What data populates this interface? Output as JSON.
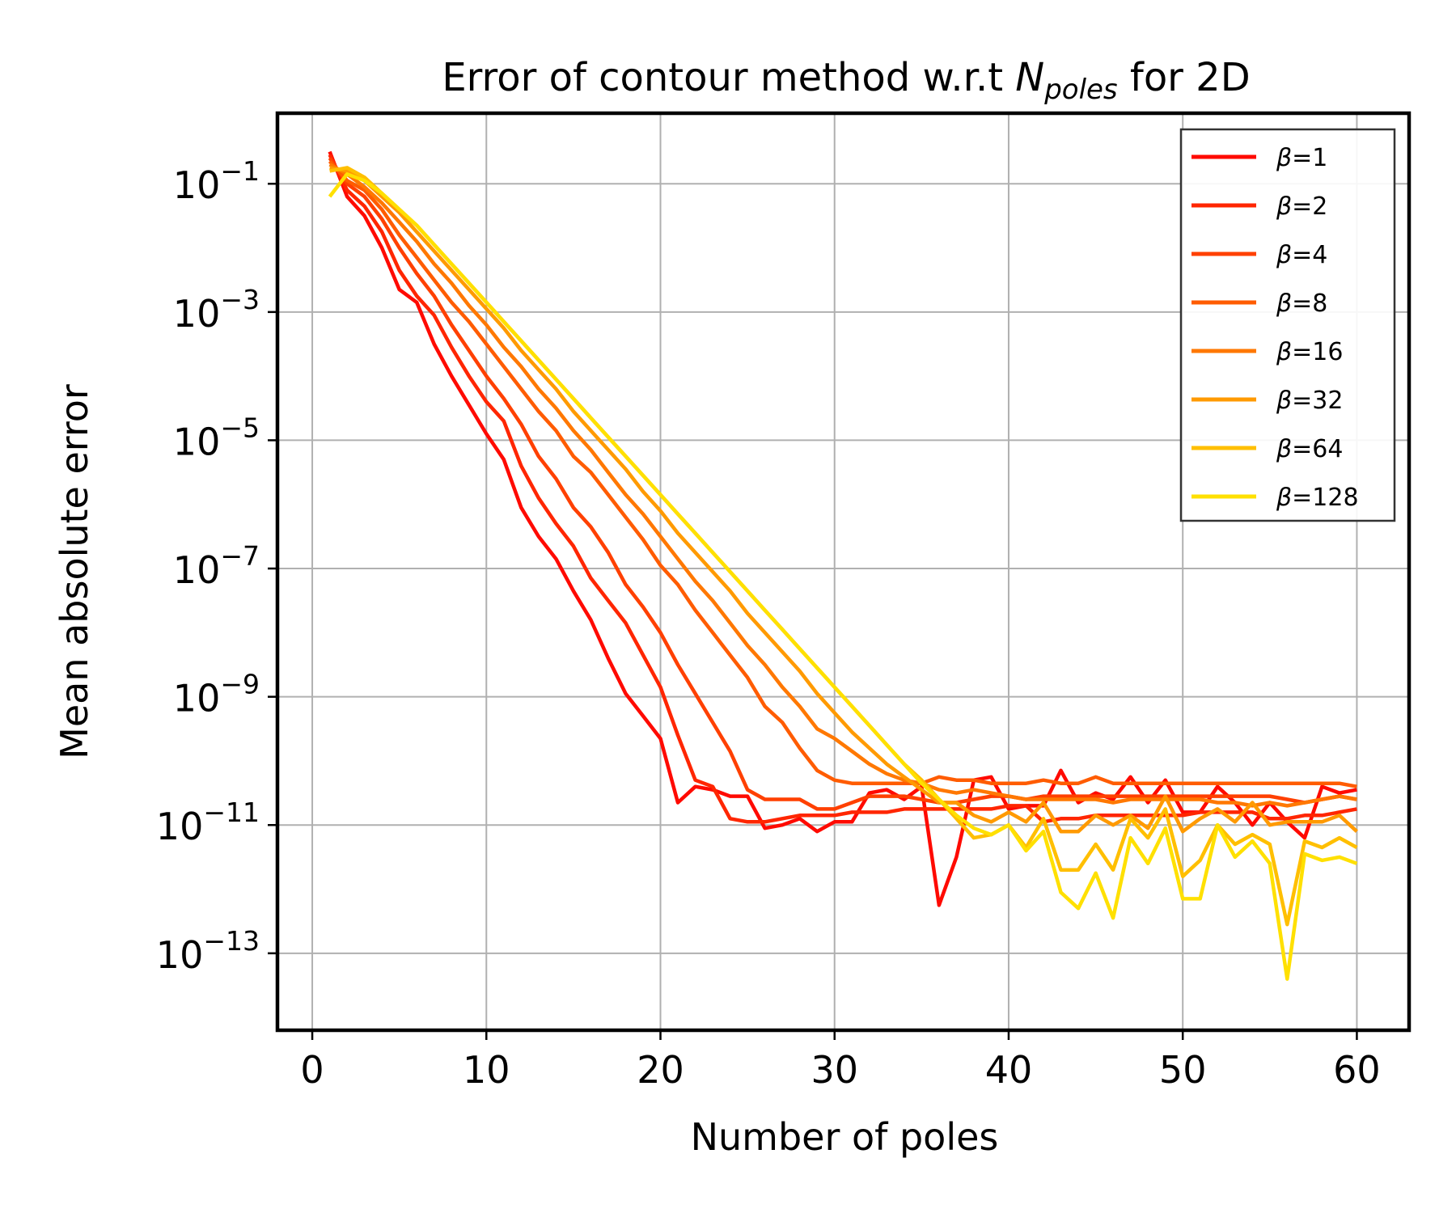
{
  "chart_data": {
    "type": "line",
    "title": "Error of contour method w.r.t N_poles for 2D",
    "title_parts": {
      "prefix": "Error of contour method w.r.t ",
      "var": "N",
      "var_sub": "poles",
      "suffix": " for 2D"
    },
    "xlabel": "Number of poles",
    "ylabel": "Mean absolute error",
    "y_scale": "log",
    "xlim": [
      -2,
      63
    ],
    "ylim_exp": [
      -14.2,
      0.1
    ],
    "x_ticks": [
      0,
      10,
      20,
      30,
      40,
      50,
      60
    ],
    "y_tick_exponents": [
      -1,
      -3,
      -5,
      -7,
      -9,
      -11,
      -13
    ],
    "y_tick_base": "10",
    "grid": true,
    "legend_position": "top-right",
    "legend_symbol": "β",
    "x": [
      1,
      2,
      3,
      4,
      5,
      6,
      7,
      8,
      9,
      10,
      11,
      12,
      13,
      14,
      15,
      16,
      17,
      18,
      19,
      20,
      21,
      22,
      23,
      24,
      25,
      26,
      27,
      28,
      29,
      30,
      31,
      32,
      33,
      34,
      35,
      36,
      37,
      38,
      39,
      40,
      41,
      42,
      43,
      44,
      45,
      46,
      47,
      48,
      49,
      50,
      51,
      52,
      53,
      54,
      55,
      56,
      57,
      58,
      59,
      60
    ],
    "series_log10": [
      {
        "name": "β=1",
        "color": "#ff0a00",
        "values": [
          -0.5,
          -1.2,
          -1.5,
          -2.0,
          -2.65,
          -2.85,
          -3.5,
          -4.0,
          -4.45,
          -4.9,
          -5.3,
          -6.05,
          -6.5,
          -6.85,
          -7.35,
          -7.8,
          -8.4,
          -8.95,
          -9.3,
          -9.65,
          -10.65,
          -10.4,
          -10.45,
          -10.55,
          -10.55,
          -11.05,
          -11.0,
          -10.9,
          -11.1,
          -10.95,
          -10.95,
          -10.5,
          -10.45,
          -10.6,
          -10.4,
          -12.25,
          -11.5,
          -10.3,
          -10.25,
          -10.75,
          -10.7,
          -10.7,
          -10.15,
          -10.65,
          -10.5,
          -10.6,
          -10.25,
          -10.65,
          -10.3,
          -10.8,
          -10.8,
          -10.4,
          -10.65,
          -11.0,
          -10.65,
          -10.95,
          -11.2,
          -10.4,
          -10.5,
          -10.45
        ]
      },
      {
        "name": "β=2",
        "color": "#ff2600",
        "values": [
          -0.55,
          -1.1,
          -1.35,
          -1.75,
          -2.35,
          -2.75,
          -3.05,
          -3.55,
          -4.0,
          -4.4,
          -4.7,
          -5.4,
          -5.9,
          -6.3,
          -6.65,
          -7.15,
          -7.5,
          -7.85,
          -8.35,
          -8.85,
          -9.6,
          -10.3,
          -10.4,
          -10.9,
          -10.95,
          -10.95,
          -10.9,
          -10.85,
          -10.85,
          -10.85,
          -10.8,
          -10.8,
          -10.8,
          -10.75,
          -10.75,
          -10.75,
          -10.75,
          -10.75,
          -10.75,
          -10.7,
          -10.7,
          -10.95,
          -10.9,
          -10.9,
          -10.85,
          -10.85,
          -10.85,
          -10.85,
          -10.85,
          -10.85,
          -10.8,
          -10.8,
          -10.8,
          -10.8,
          -10.9,
          -10.9,
          -10.85,
          -10.85,
          -10.8,
          -10.75
        ]
      },
      {
        "name": "β=4",
        "color": "#ff4000",
        "values": [
          -0.6,
          -1.0,
          -1.2,
          -1.55,
          -2.0,
          -2.4,
          -2.75,
          -3.2,
          -3.6,
          -4.0,
          -4.35,
          -4.75,
          -5.25,
          -5.6,
          -6.05,
          -6.35,
          -6.75,
          -7.25,
          -7.6,
          -8.0,
          -8.5,
          -8.95,
          -9.4,
          -9.85,
          -10.45,
          -10.6,
          -10.6,
          -10.6,
          -10.75,
          -10.75,
          -10.65,
          -10.55,
          -10.55,
          -10.55,
          -10.6,
          -10.65,
          -10.65,
          -10.6,
          -10.55,
          -10.55,
          -10.6,
          -10.55,
          -10.55,
          -10.55,
          -10.55,
          -10.55,
          -10.55,
          -10.55,
          -10.55,
          -10.55,
          -10.55,
          -10.55,
          -10.55,
          -10.55,
          -10.55,
          -10.6,
          -10.65,
          -10.6,
          -10.55,
          -10.6
        ]
      },
      {
        "name": "β=8",
        "color": "#ff5c00",
        "values": [
          -0.65,
          -0.95,
          -1.1,
          -1.4,
          -1.8,
          -2.15,
          -2.5,
          -2.85,
          -3.15,
          -3.5,
          -3.85,
          -4.2,
          -4.55,
          -4.85,
          -5.25,
          -5.5,
          -5.85,
          -6.2,
          -6.55,
          -6.95,
          -7.25,
          -7.65,
          -8.0,
          -8.35,
          -8.7,
          -9.15,
          -9.4,
          -9.8,
          -10.15,
          -10.3,
          -10.35,
          -10.35,
          -10.35,
          -10.35,
          -10.35,
          -10.25,
          -10.3,
          -10.3,
          -10.35,
          -10.35,
          -10.35,
          -10.3,
          -10.35,
          -10.35,
          -10.25,
          -10.35,
          -10.35,
          -10.35,
          -10.35,
          -10.35,
          -10.35,
          -10.35,
          -10.35,
          -10.35,
          -10.35,
          -10.35,
          -10.35,
          -10.35,
          -10.35,
          -10.4
        ]
      },
      {
        "name": "β=16",
        "color": "#ff7800",
        "values": [
          -0.7,
          -0.85,
          -1.05,
          -1.3,
          -1.6,
          -1.9,
          -2.25,
          -2.55,
          -2.9,
          -3.2,
          -3.55,
          -3.85,
          -4.2,
          -4.5,
          -4.85,
          -5.15,
          -5.5,
          -5.85,
          -6.15,
          -6.5,
          -6.85,
          -7.2,
          -7.5,
          -7.85,
          -8.2,
          -8.5,
          -8.85,
          -9.15,
          -9.5,
          -9.65,
          -9.85,
          -10.05,
          -10.2,
          -10.3,
          -10.35,
          -10.45,
          -10.5,
          -10.45,
          -10.5,
          -10.55,
          -10.6,
          -10.6,
          -10.6,
          -10.6,
          -10.6,
          -10.65,
          -10.6,
          -10.6,
          -10.6,
          -10.6,
          -10.6,
          -10.65,
          -10.65,
          -10.7,
          -10.65,
          -10.7,
          -10.65,
          -10.6,
          -10.55,
          -10.6
        ]
      },
      {
        "name": "β=32",
        "color": "#ff9a00",
        "values": [
          -0.75,
          -0.8,
          -0.95,
          -1.2,
          -1.45,
          -1.75,
          -2.05,
          -2.35,
          -2.65,
          -2.95,
          -3.25,
          -3.6,
          -3.9,
          -4.2,
          -4.55,
          -4.85,
          -5.15,
          -5.45,
          -5.8,
          -6.1,
          -6.45,
          -6.75,
          -7.05,
          -7.35,
          -7.7,
          -8.0,
          -8.3,
          -8.6,
          -8.95,
          -9.25,
          -9.55,
          -9.8,
          -10.05,
          -10.25,
          -10.45,
          -10.65,
          -10.65,
          -10.85,
          -10.95,
          -10.8,
          -10.95,
          -10.65,
          -11.1,
          -11.1,
          -10.85,
          -11.0,
          -10.85,
          -11.05,
          -10.55,
          -11.1,
          -10.9,
          -10.75,
          -10.95,
          -10.65,
          -11.0,
          -10.95,
          -10.95,
          -10.95,
          -10.85,
          -11.1
        ]
      },
      {
        "name": "β=64",
        "color": "#ffbf00",
        "values": [
          -0.8,
          -0.75,
          -0.9,
          -1.15,
          -1.4,
          -1.65,
          -1.95,
          -2.25,
          -2.55,
          -2.85,
          -3.15,
          -3.45,
          -3.75,
          -4.05,
          -4.35,
          -4.65,
          -4.95,
          -5.25,
          -5.55,
          -5.85,
          -6.15,
          -6.45,
          -6.75,
          -7.05,
          -7.35,
          -7.65,
          -7.95,
          -8.25,
          -8.55,
          -8.85,
          -9.15,
          -9.45,
          -9.75,
          -10.05,
          -10.3,
          -10.6,
          -10.9,
          -11.2,
          -11.15,
          -11.0,
          -11.35,
          -10.9,
          -11.7,
          -11.7,
          -11.3,
          -11.7,
          -10.9,
          -11.2,
          -10.75,
          -11.8,
          -11.55,
          -11.0,
          -11.3,
          -11.15,
          -11.3,
          -12.55,
          -11.25,
          -11.35,
          -11.2,
          -11.35
        ]
      },
      {
        "name": "β=128",
        "color": "#ffe000",
        "values": [
          -1.2,
          -0.85,
          -0.95,
          -1.15,
          -1.4,
          -1.65,
          -1.95,
          -2.25,
          -2.55,
          -2.85,
          -3.15,
          -3.45,
          -3.75,
          -4.05,
          -4.35,
          -4.65,
          -4.95,
          -5.25,
          -5.55,
          -5.85,
          -6.15,
          -6.45,
          -6.75,
          -7.05,
          -7.35,
          -7.65,
          -7.95,
          -8.25,
          -8.55,
          -8.85,
          -9.15,
          -9.45,
          -9.75,
          -10.05,
          -10.35,
          -10.6,
          -10.85,
          -11.05,
          -11.15,
          -11.0,
          -11.4,
          -11.1,
          -12.05,
          -12.3,
          -11.75,
          -12.45,
          -11.2,
          -11.6,
          -11.05,
          -12.15,
          -12.15,
          -11.0,
          -11.5,
          -11.25,
          -11.6,
          -13.4,
          -11.45,
          -11.55,
          -11.5,
          -11.6
        ]
      }
    ]
  }
}
